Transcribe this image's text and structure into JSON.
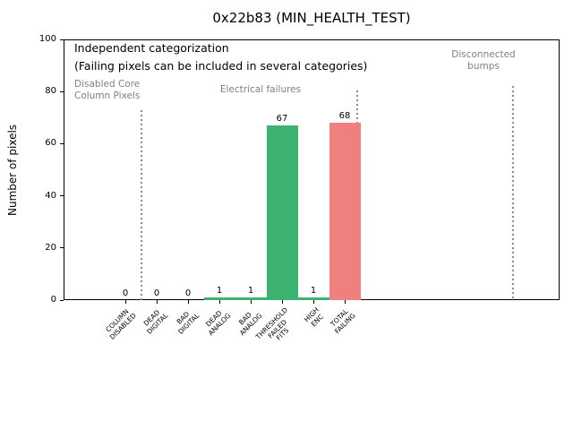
{
  "chart_data": {
    "type": "bar",
    "title": "0x22b83 (MIN_HEALTH_TEST)",
    "xlabel": "",
    "ylabel": "Number of pixels",
    "ylim": [
      0,
      100
    ],
    "yticks": [
      0,
      20,
      40,
      60,
      80,
      100
    ],
    "grid": false,
    "legend": false,
    "categories": [
      "COLUMN\nDISABLED",
      "DEAD\nDIGITAL",
      "BAD\nDIGITAL",
      "DEAD\nANALOG",
      "BAD\nANALOG",
      "THRESHOLD\nFAILED\nFITS",
      "HIGH\nENC",
      "TOTAL\nFAILING"
    ],
    "values": [
      0,
      0,
      0,
      1,
      1,
      67,
      1,
      68
    ],
    "value_labels": [
      "0",
      "0",
      "0",
      "1",
      "1",
      "67",
      "1",
      "68"
    ],
    "bar_colors": [
      "#3cb371",
      "#3cb371",
      "#3cb371",
      "#3cb371",
      "#3cb371",
      "#3cb371",
      "#3cb371",
      "#f08080"
    ],
    "annotations": {
      "note_line1": "Independent categorization",
      "note_line2": "(Failing pixels can be included in several categories)",
      "sections": [
        {
          "label": "Disabled Core\nColumn Pixels"
        },
        {
          "label": "Electrical failures"
        },
        {
          "label": "Disconnected\nbumps"
        }
      ]
    },
    "colors": {
      "bar_green": "#3cb371",
      "bar_red": "#f08080",
      "muted_text": "#808080",
      "divider_gray": "#8c8c8c"
    }
  }
}
